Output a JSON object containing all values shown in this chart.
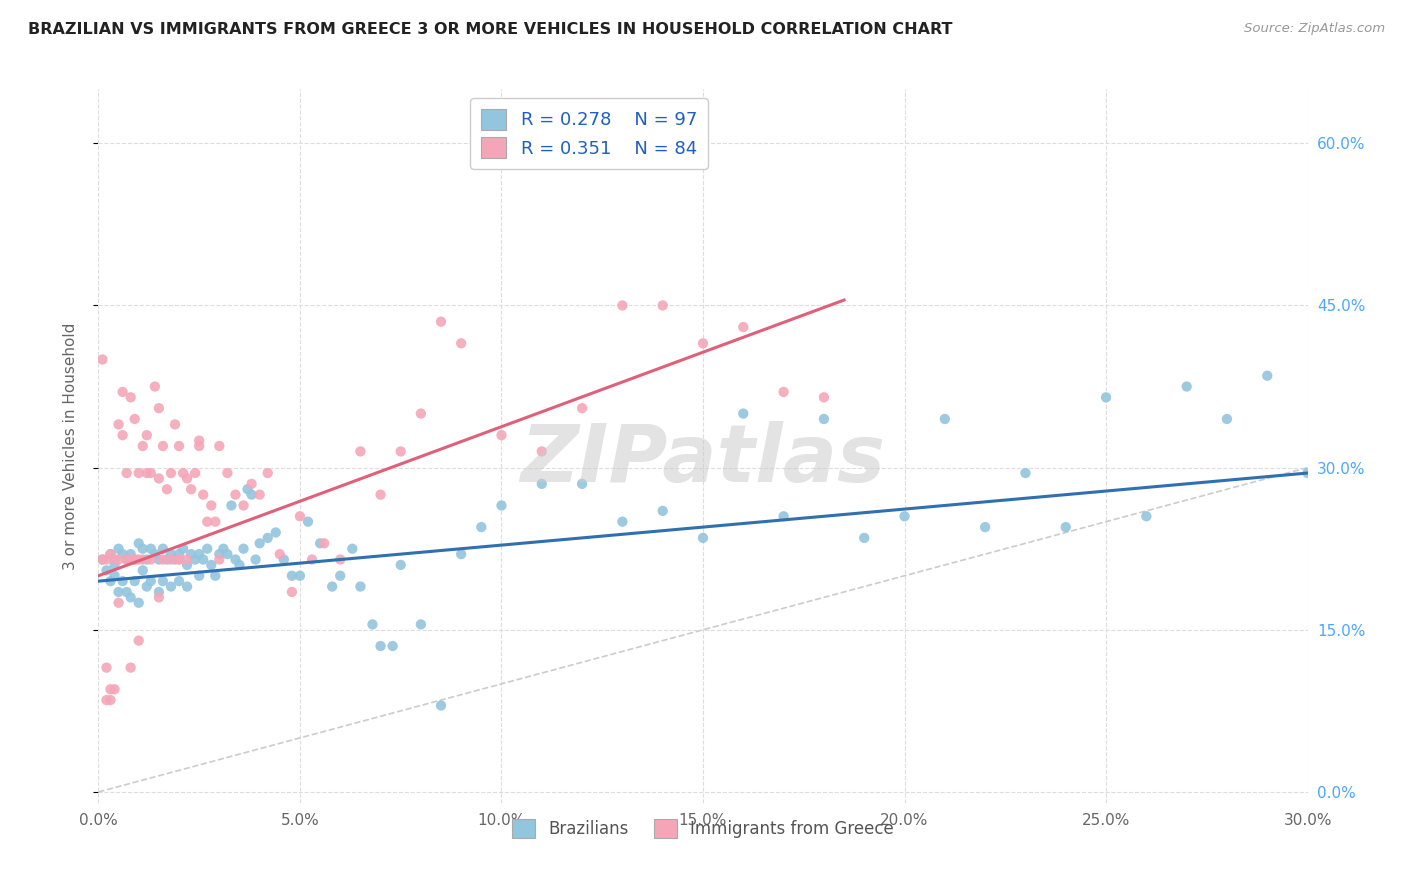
{
  "title": "BRAZILIAN VS IMMIGRANTS FROM GREECE 3 OR MORE VEHICLES IN HOUSEHOLD CORRELATION CHART",
  "source": "Source: ZipAtlas.com",
  "ylabel": "3 or more Vehicles in Household",
  "xlim": [
    0.0,
    0.3
  ],
  "ylim": [
    -0.01,
    0.65
  ],
  "xticks": [
    0.0,
    0.05,
    0.1,
    0.15,
    0.2,
    0.25,
    0.3
  ],
  "yticks": [
    0.0,
    0.15,
    0.3,
    0.45,
    0.6
  ],
  "blue_color": "#92c5de",
  "pink_color": "#f4a6b8",
  "blue_line_color": "#3070b0",
  "pink_line_color": "#e0607a",
  "ref_line_color": "#cccccc",
  "legend_R_blue": "0.278",
  "legend_N_blue": "97",
  "legend_R_pink": "0.351",
  "legend_N_pink": "84",
  "legend_label_blue": "Brazilians",
  "legend_label_pink": "Immigrants from Greece",
  "watermark": "ZIPatlas",
  "blue_trendline_x": [
    0.0,
    0.3
  ],
  "blue_trendline_y": [
    0.195,
    0.295
  ],
  "pink_trendline_x": [
    0.0,
    0.185
  ],
  "pink_trendline_y": [
    0.2,
    0.455
  ],
  "ref_line_x": [
    0.0,
    0.62
  ],
  "ref_line_y": [
    0.0,
    0.62
  ],
  "blue_x": [
    0.001,
    0.002,
    0.003,
    0.003,
    0.004,
    0.004,
    0.005,
    0.005,
    0.006,
    0.006,
    0.007,
    0.007,
    0.008,
    0.008,
    0.009,
    0.009,
    0.01,
    0.01,
    0.011,
    0.011,
    0.012,
    0.012,
    0.013,
    0.013,
    0.014,
    0.015,
    0.015,
    0.016,
    0.016,
    0.017,
    0.018,
    0.018,
    0.019,
    0.02,
    0.02,
    0.021,
    0.022,
    0.022,
    0.023,
    0.024,
    0.025,
    0.025,
    0.026,
    0.027,
    0.028,
    0.029,
    0.03,
    0.031,
    0.032,
    0.033,
    0.034,
    0.035,
    0.036,
    0.037,
    0.038,
    0.039,
    0.04,
    0.042,
    0.044,
    0.046,
    0.048,
    0.05,
    0.052,
    0.055,
    0.058,
    0.06,
    0.063,
    0.065,
    0.068,
    0.07,
    0.073,
    0.075,
    0.08,
    0.085,
    0.09,
    0.095,
    0.1,
    0.11,
    0.12,
    0.13,
    0.14,
    0.15,
    0.16,
    0.17,
    0.18,
    0.19,
    0.2,
    0.21,
    0.22,
    0.23,
    0.24,
    0.25,
    0.26,
    0.27,
    0.28,
    0.29,
    0.3
  ],
  "blue_y": [
    0.215,
    0.205,
    0.22,
    0.195,
    0.21,
    0.2,
    0.225,
    0.185,
    0.22,
    0.195,
    0.215,
    0.185,
    0.22,
    0.18,
    0.215,
    0.195,
    0.23,
    0.175,
    0.225,
    0.205,
    0.215,
    0.19,
    0.225,
    0.195,
    0.22,
    0.215,
    0.185,
    0.225,
    0.195,
    0.215,
    0.22,
    0.19,
    0.215,
    0.22,
    0.195,
    0.225,
    0.21,
    0.19,
    0.22,
    0.215,
    0.22,
    0.2,
    0.215,
    0.225,
    0.21,
    0.2,
    0.22,
    0.225,
    0.22,
    0.265,
    0.215,
    0.21,
    0.225,
    0.28,
    0.275,
    0.215,
    0.23,
    0.235,
    0.24,
    0.215,
    0.2,
    0.2,
    0.25,
    0.23,
    0.19,
    0.2,
    0.225,
    0.19,
    0.155,
    0.135,
    0.135,
    0.21,
    0.155,
    0.08,
    0.22,
    0.245,
    0.265,
    0.285,
    0.285,
    0.25,
    0.26,
    0.235,
    0.35,
    0.255,
    0.345,
    0.235,
    0.255,
    0.345,
    0.245,
    0.295,
    0.245,
    0.365,
    0.255,
    0.375,
    0.345,
    0.385,
    0.295
  ],
  "pink_x": [
    0.001,
    0.001,
    0.002,
    0.002,
    0.003,
    0.003,
    0.004,
    0.004,
    0.005,
    0.005,
    0.006,
    0.006,
    0.007,
    0.007,
    0.008,
    0.008,
    0.009,
    0.009,
    0.01,
    0.01,
    0.011,
    0.011,
    0.012,
    0.012,
    0.013,
    0.013,
    0.014,
    0.015,
    0.015,
    0.016,
    0.016,
    0.017,
    0.018,
    0.018,
    0.019,
    0.02,
    0.02,
    0.021,
    0.022,
    0.022,
    0.023,
    0.024,
    0.025,
    0.026,
    0.027,
    0.028,
    0.029,
    0.03,
    0.032,
    0.034,
    0.036,
    0.038,
    0.04,
    0.042,
    0.045,
    0.048,
    0.05,
    0.053,
    0.056,
    0.06,
    0.065,
    0.07,
    0.075,
    0.08,
    0.085,
    0.09,
    0.1,
    0.11,
    0.12,
    0.13,
    0.14,
    0.15,
    0.16,
    0.17,
    0.18,
    0.025,
    0.03,
    0.005,
    0.003,
    0.002,
    0.008,
    0.01,
    0.015,
    0.02
  ],
  "pink_y": [
    0.4,
    0.215,
    0.215,
    0.115,
    0.22,
    0.095,
    0.215,
    0.095,
    0.34,
    0.215,
    0.37,
    0.33,
    0.295,
    0.215,
    0.365,
    0.215,
    0.345,
    0.215,
    0.295,
    0.215,
    0.32,
    0.215,
    0.33,
    0.295,
    0.295,
    0.215,
    0.375,
    0.355,
    0.29,
    0.32,
    0.215,
    0.28,
    0.295,
    0.215,
    0.34,
    0.32,
    0.215,
    0.295,
    0.29,
    0.215,
    0.28,
    0.295,
    0.32,
    0.275,
    0.25,
    0.265,
    0.25,
    0.32,
    0.295,
    0.275,
    0.265,
    0.285,
    0.275,
    0.295,
    0.22,
    0.185,
    0.255,
    0.215,
    0.23,
    0.215,
    0.315,
    0.275,
    0.315,
    0.35,
    0.435,
    0.415,
    0.33,
    0.315,
    0.355,
    0.45,
    0.45,
    0.415,
    0.43,
    0.37,
    0.365,
    0.325,
    0.215,
    0.175,
    0.085,
    0.085,
    0.115,
    0.14,
    0.18,
    0.215
  ]
}
